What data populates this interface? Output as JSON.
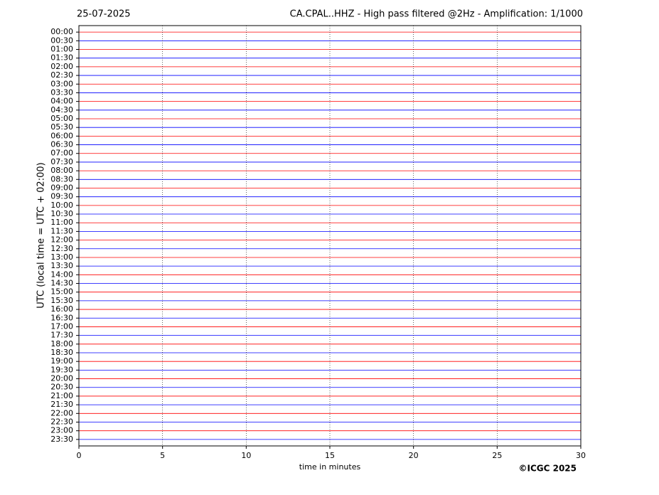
{
  "chart_data": {
    "type": "helicorder",
    "date": "25-07-2025",
    "title": "CA.CPAL..HHZ - High pass filtered @2Hz - Amplification: 1/1000",
    "ylabel": "UTC (local time = UTC + 02:00)",
    "xlabel": "time in minutes",
    "copyright": "©ICGC 2025",
    "categories": [
      "00:00",
      "00:30",
      "01:00",
      "01:30",
      "02:00",
      "02:30",
      "03:00",
      "03:30",
      "04:00",
      "04:30",
      "05:00",
      "05:30",
      "06:00",
      "06:30",
      "07:00",
      "07:30",
      "08:00",
      "08:30",
      "09:00",
      "09:30",
      "10:00",
      "10:30",
      "11:00",
      "11:30",
      "12:00",
      "12:30",
      "13:00",
      "13:30",
      "14:00",
      "14:30",
      "15:00",
      "15:30",
      "16:00",
      "16:30",
      "17:00",
      "17:30",
      "18:00",
      "18:30",
      "19:00",
      "19:30",
      "20:00",
      "20:30",
      "21:00",
      "21:30",
      "22:00",
      "22:30",
      "23:00",
      "23:30"
    ],
    "colors": [
      "#ff0000",
      "#0000ff"
    ],
    "xlim": [
      0,
      30
    ],
    "xticks": [
      0,
      5,
      10,
      15,
      20,
      25,
      30
    ],
    "grid": true
  }
}
